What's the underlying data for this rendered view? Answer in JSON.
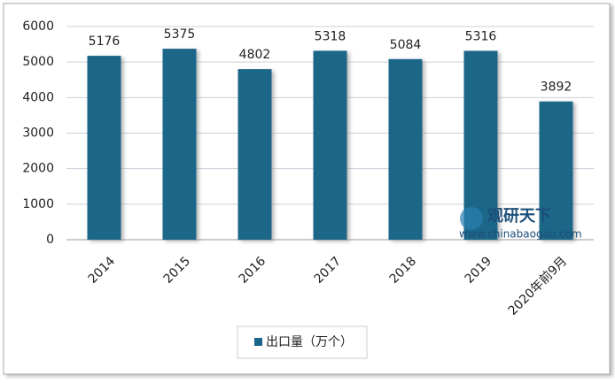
{
  "chart_data": {
    "type": "bar",
    "categories": [
      "2014",
      "2015",
      "2016",
      "2017",
      "2018",
      "2019",
      "2020年前9月"
    ],
    "series": [
      {
        "name": "出口量（万个）",
        "color": "#1b6688",
        "values": [
          5176,
          5375,
          4802,
          5318,
          5084,
          5316,
          3892
        ]
      }
    ],
    "ylim": [
      0,
      6000
    ],
    "yticks": [
      0,
      1000,
      2000,
      3000,
      4000,
      5000,
      6000
    ],
    "grid": true,
    "legend": "bottom",
    "watermark": {
      "title": "观研天下",
      "url": "www.chinabaogao.com"
    }
  }
}
